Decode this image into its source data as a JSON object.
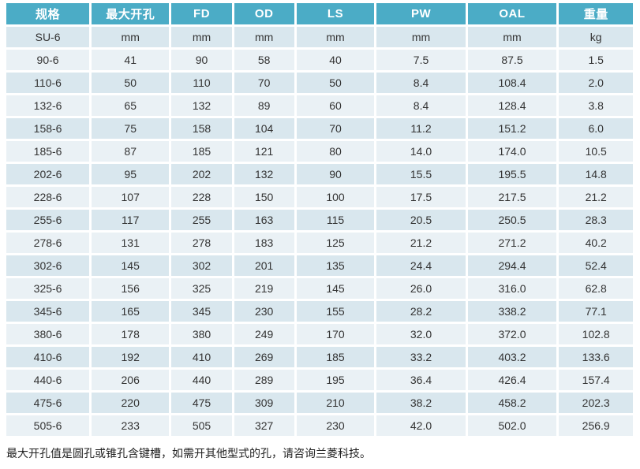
{
  "table": {
    "headers": [
      "规格",
      "最大开孔",
      "FD",
      "OD",
      "LS",
      "PW",
      "OAL",
      "重量"
    ],
    "units_row": [
      "SU-6",
      "mm",
      "mm",
      "mm",
      "mm",
      "mm",
      "mm",
      "kg"
    ],
    "rows": [
      [
        "90-6",
        "41",
        "90",
        "58",
        "40",
        "7.5",
        "87.5",
        "1.5"
      ],
      [
        "110-6",
        "50",
        "110",
        "70",
        "50",
        "8.4",
        "108.4",
        "2.0"
      ],
      [
        "132-6",
        "65",
        "132",
        "89",
        "60",
        "8.4",
        "128.4",
        "3.8"
      ],
      [
        "158-6",
        "75",
        "158",
        "104",
        "70",
        "11.2",
        "151.2",
        "6.0"
      ],
      [
        "185-6",
        "87",
        "185",
        "121",
        "80",
        "14.0",
        "174.0",
        "10.5"
      ],
      [
        "202-6",
        "95",
        "202",
        "132",
        "90",
        "15.5",
        "195.5",
        "14.8"
      ],
      [
        "228-6",
        "107",
        "228",
        "150",
        "100",
        "17.5",
        "217.5",
        "21.2"
      ],
      [
        "255-6",
        "117",
        "255",
        "163",
        "115",
        "20.5",
        "250.5",
        "28.3"
      ],
      [
        "278-6",
        "131",
        "278",
        "183",
        "125",
        "21.2",
        "271.2",
        "40.2"
      ],
      [
        "302-6",
        "145",
        "302",
        "201",
        "135",
        "24.4",
        "294.4",
        "52.4"
      ],
      [
        "325-6",
        "156",
        "325",
        "219",
        "145",
        "26.0",
        "316.0",
        "62.8"
      ],
      [
        "345-6",
        "165",
        "345",
        "230",
        "155",
        "28.2",
        "338.2",
        "77.1"
      ],
      [
        "380-6",
        "178",
        "380",
        "249",
        "170",
        "32.0",
        "372.0",
        "102.8"
      ],
      [
        "410-6",
        "192",
        "410",
        "269",
        "185",
        "33.2",
        "403.2",
        "133.6"
      ],
      [
        "440-6",
        "206",
        "440",
        "289",
        "195",
        "36.4",
        "426.4",
        "157.4"
      ],
      [
        "475-6",
        "220",
        "475",
        "309",
        "210",
        "38.2",
        "458.2",
        "202.3"
      ],
      [
        "505-6",
        "233",
        "505",
        "327",
        "230",
        "42.0",
        "502.0",
        "256.9"
      ]
    ]
  },
  "footer_note": "最大开孔值是圆孔或锥孔含键槽，如需开其他型式的孔，请咨询兰菱科技。",
  "colors": {
    "header_bg": "#4BACC6",
    "header_text": "#FFFFFF",
    "band_dark": "#D9E7EE",
    "band_light": "#EAF1F5",
    "body_text": "#333333"
  }
}
